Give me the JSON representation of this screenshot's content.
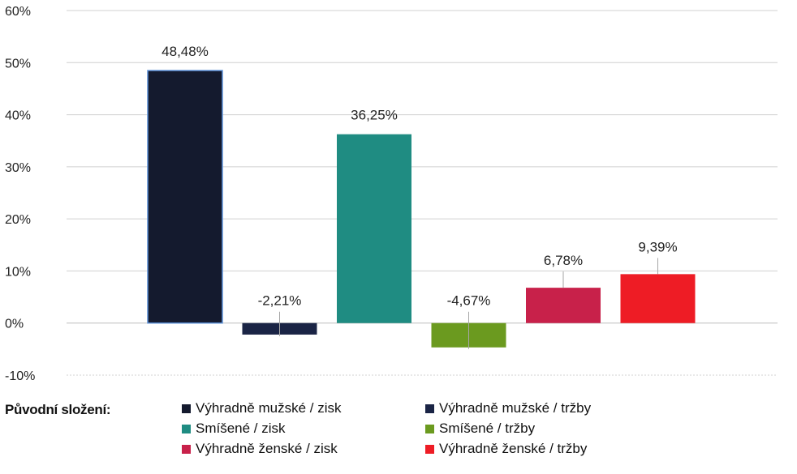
{
  "chart_data": {
    "type": "bar",
    "categories": [
      "Výhradně mužské / zisk",
      "Výhradně mužské / tržby",
      "Smíšené / zisk",
      "Smíšené / tržby",
      "Výhradně ženské / zisk",
      "Výhradně ženské / tržby"
    ],
    "values": [
      48.48,
      -2.21,
      36.25,
      -4.67,
      6.78,
      9.39
    ],
    "data_labels": [
      "48,48%",
      "-2,21%",
      "36,25%",
      "-4,67%",
      "6,78%",
      "9,39%"
    ],
    "colors": [
      "#141a2e",
      "#1a2445",
      "#1f8c82",
      "#6b9a1f",
      "#c8214a",
      "#ee1c25"
    ],
    "ylim": [
      -10,
      60
    ],
    "yticks": [
      -10,
      0,
      10,
      20,
      30,
      40,
      50,
      60
    ],
    "ytick_labels": [
      "-10%",
      "0%",
      "10%",
      "20%",
      "30%",
      "40%",
      "50%",
      "60%"
    ],
    "grid": true,
    "legend_title": "Původní složení:",
    "legend_placement": "bottom"
  }
}
